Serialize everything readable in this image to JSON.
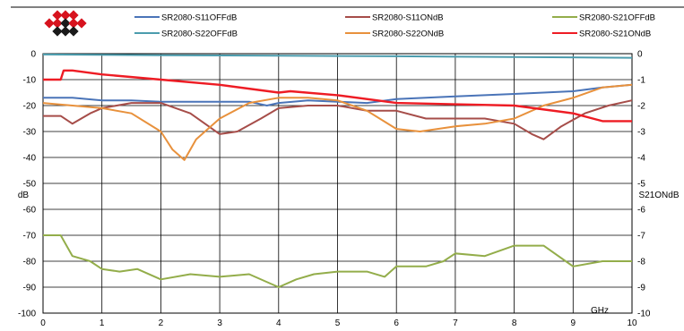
{
  "chart_data": {
    "type": "line",
    "x_unit_label": "GHz",
    "xlim": [
      0,
      10
    ],
    "x_ticks": [
      "0",
      "1",
      "2",
      "3",
      "4",
      "5",
      "6",
      "7",
      "8",
      "9",
      "10"
    ],
    "left_axis": {
      "label": "dB",
      "ylim": [
        -100,
        0
      ],
      "ticks": [
        "0",
        "-10",
        "-20",
        "-30",
        "-40",
        "-50",
        "-60",
        "-70",
        "-80",
        "-90",
        "-100"
      ]
    },
    "right_axis": {
      "label": "S21ONdB",
      "ylim": [
        -10,
        0
      ],
      "ticks": [
        "0",
        "-1",
        "-2",
        "-3",
        "-4",
        "-5",
        "-6",
        "-7",
        "-8",
        "-9",
        "-10"
      ]
    },
    "grid": true,
    "legend_position": "top",
    "series": [
      {
        "name": "SR2080-S11OFFdB",
        "color": "#4a74b8",
        "axis": "left",
        "points": [
          [
            0,
            -17
          ],
          [
            0.5,
            -17
          ],
          [
            1,
            -18
          ],
          [
            1.5,
            -18
          ],
          [
            2,
            -18.5
          ],
          [
            2.5,
            -18.5
          ],
          [
            3,
            -18.5
          ],
          [
            3.5,
            -18.5
          ],
          [
            3.8,
            -20
          ],
          [
            4,
            -19
          ],
          [
            4.5,
            -18
          ],
          [
            5,
            -18.5
          ],
          [
            5.5,
            -19
          ],
          [
            6,
            -17.5
          ],
          [
            6.5,
            -17
          ],
          [
            7,
            -16.5
          ],
          [
            7.5,
            -16
          ],
          [
            8,
            -15.5
          ],
          [
            8.5,
            -15
          ],
          [
            9,
            -14.5
          ],
          [
            9.5,
            -13
          ],
          [
            10,
            -12
          ]
        ]
      },
      {
        "name": "SR2080-S11ONdB",
        "color": "#a64d49",
        "axis": "left",
        "points": [
          [
            0,
            -24
          ],
          [
            0.3,
            -24
          ],
          [
            0.5,
            -27
          ],
          [
            0.8,
            -23
          ],
          [
            1,
            -21
          ],
          [
            1.5,
            -19
          ],
          [
            2,
            -19
          ],
          [
            2.5,
            -23
          ],
          [
            3,
            -31
          ],
          [
            3.3,
            -30
          ],
          [
            3.7,
            -25
          ],
          [
            4,
            -21
          ],
          [
            4.5,
            -20
          ],
          [
            5,
            -20
          ],
          [
            5.5,
            -22
          ],
          [
            6,
            -22
          ],
          [
            6.5,
            -25
          ],
          [
            7,
            -25
          ],
          [
            7.5,
            -25
          ],
          [
            8,
            -27
          ],
          [
            8.3,
            -31
          ],
          [
            8.5,
            -33
          ],
          [
            8.8,
            -28
          ],
          [
            9.2,
            -23
          ],
          [
            9.6,
            -20
          ],
          [
            10,
            -18
          ]
        ]
      },
      {
        "name": "SR2080-S21OFFdB",
        "color": "#93ad4a",
        "axis": "left",
        "points": [
          [
            0,
            -70
          ],
          [
            0.3,
            -70
          ],
          [
            0.5,
            -78
          ],
          [
            0.8,
            -80
          ],
          [
            1,
            -83
          ],
          [
            1.3,
            -84
          ],
          [
            1.6,
            -83
          ],
          [
            2,
            -87
          ],
          [
            2.5,
            -85
          ],
          [
            3,
            -86
          ],
          [
            3.5,
            -85
          ],
          [
            4,
            -90
          ],
          [
            4.3,
            -87
          ],
          [
            4.6,
            -85
          ],
          [
            5,
            -84
          ],
          [
            5.5,
            -84
          ],
          [
            5.8,
            -86
          ],
          [
            5.9,
            -84
          ],
          [
            6,
            -82
          ],
          [
            6.5,
            -82
          ],
          [
            6.8,
            -80
          ],
          [
            7,
            -77
          ],
          [
            7.5,
            -78
          ],
          [
            8,
            -74
          ],
          [
            8.5,
            -74
          ],
          [
            9,
            -82
          ],
          [
            9.5,
            -80
          ],
          [
            10,
            -80
          ]
        ]
      },
      {
        "name": "SR2080-S22OFFdB",
        "color": "#4b9cad",
        "axis": "left",
        "points": [
          [
            0,
            -0.3
          ],
          [
            2,
            -0.6
          ],
          [
            4,
            -0.8
          ],
          [
            6,
            -1
          ],
          [
            8,
            -1.3
          ],
          [
            10,
            -1.6
          ]
        ]
      },
      {
        "name": "SR2080-S22ONdB",
        "color": "#e8913c",
        "axis": "left",
        "points": [
          [
            0,
            -19
          ],
          [
            0.5,
            -20
          ],
          [
            1,
            -21
          ],
          [
            1.5,
            -23
          ],
          [
            2,
            -30
          ],
          [
            2.2,
            -37
          ],
          [
            2.4,
            -41
          ],
          [
            2.6,
            -33
          ],
          [
            3,
            -25
          ],
          [
            3.5,
            -19
          ],
          [
            4,
            -17
          ],
          [
            4.5,
            -17
          ],
          [
            5,
            -18
          ],
          [
            5.5,
            -22
          ],
          [
            6,
            -29
          ],
          [
            6.4,
            -30
          ],
          [
            7,
            -28
          ],
          [
            7.5,
            -27
          ],
          [
            8,
            -25
          ],
          [
            8.5,
            -20
          ],
          [
            9,
            -17
          ],
          [
            9.5,
            -13
          ],
          [
            10,
            -12
          ]
        ]
      },
      {
        "name": "SR2080-S21ONdB",
        "color": "#ee1c24",
        "axis": "right",
        "points": [
          [
            0,
            -1.0
          ],
          [
            0.3,
            -1.0
          ],
          [
            0.35,
            -0.65
          ],
          [
            0.5,
            -0.65
          ],
          [
            1,
            -0.8
          ],
          [
            2,
            -1.0
          ],
          [
            3,
            -1.2
          ],
          [
            4,
            -1.5
          ],
          [
            4.2,
            -1.45
          ],
          [
            5,
            -1.6
          ],
          [
            6,
            -1.9
          ],
          [
            7,
            -1.95
          ],
          [
            8,
            -2.0
          ],
          [
            9,
            -2.3
          ],
          [
            9.5,
            -2.6
          ],
          [
            10,
            -2.6
          ]
        ]
      }
    ]
  }
}
